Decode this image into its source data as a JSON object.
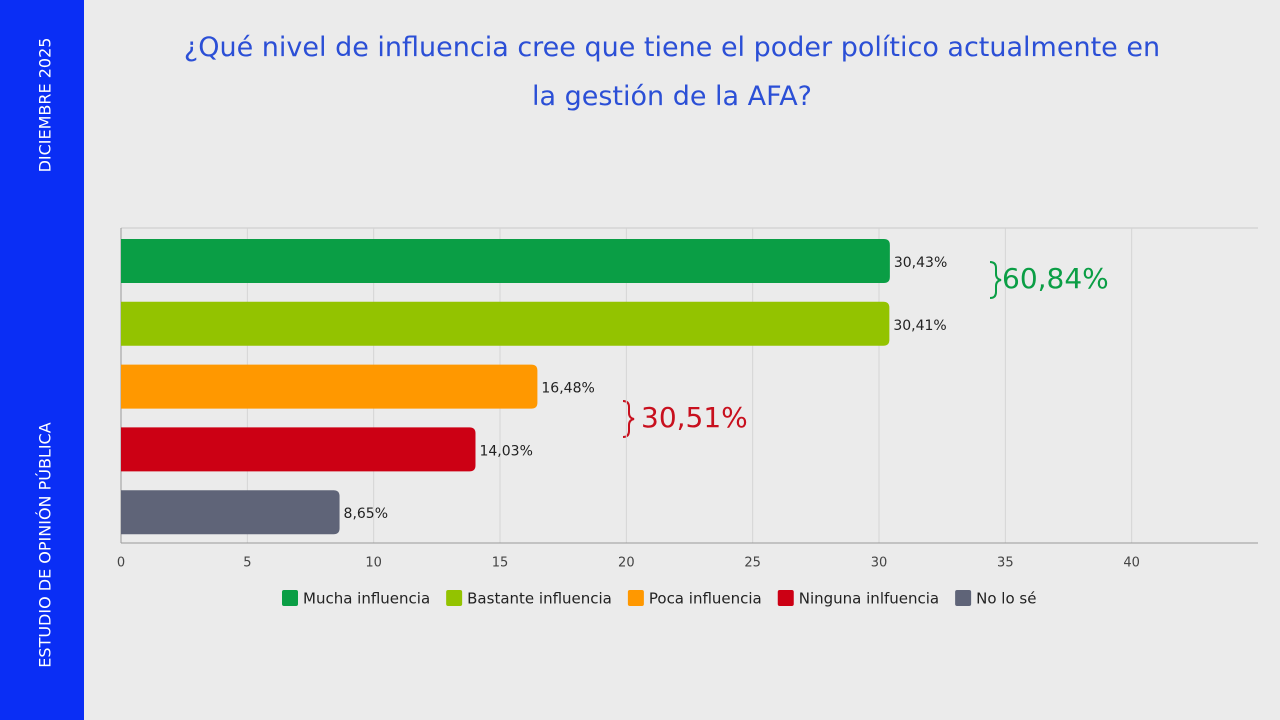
{
  "sidebar": {
    "top": "DICIEMBRE 2025",
    "bottom": "ESTUDIO DE OPINIÓN PÚBLICA"
  },
  "chart_data": {
    "type": "bar",
    "orientation": "horizontal",
    "title": "¿Qué nivel de influencia cree que tiene el poder político actualmente en la gestión de la AFA?",
    "series": [
      {
        "name": "Mucha influencia",
        "color": "#0a9e45",
        "values": [
          30.43
        ],
        "value_labels": [
          "30,43%"
        ]
      },
      {
        "name": "Bastante influencia",
        "color": "#93c300",
        "values": [
          30.41
        ],
        "value_labels": [
          "30,41%"
        ]
      },
      {
        "name": "Poca influencia",
        "color": "#ff9800",
        "values": [
          16.48
        ],
        "value_labels": [
          "16,48%"
        ]
      },
      {
        "name": "Ninguna inlfuencia",
        "color": "#cc0014",
        "values": [
          14.03
        ],
        "value_labels": [
          "14,03%"
        ]
      },
      {
        "name": "No lo sé",
        "color": "#5f6478",
        "values": [
          8.65
        ],
        "value_labels": [
          "8,65%"
        ]
      }
    ],
    "xlim": [
      0,
      45
    ],
    "xticks": [
      0,
      5,
      10,
      15,
      20,
      25,
      30,
      35,
      40
    ],
    "grid": true,
    "legend": "bottom",
    "annotations": [
      {
        "text": "60,84%",
        "color": "#0a9e45"
      },
      {
        "text": "30,51%",
        "color": "#c8101e"
      }
    ]
  }
}
